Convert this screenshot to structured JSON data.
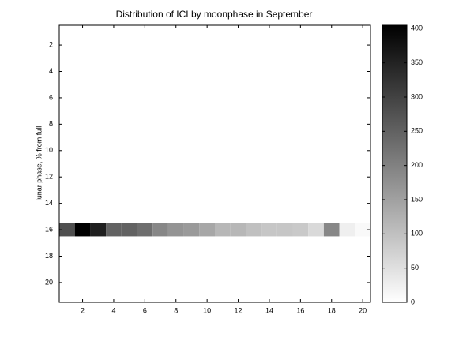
{
  "chart_data": {
    "type": "heatmap",
    "title": "Distribution of ICI by moonphase in September",
    "ylabel": "lunar phase, % from full",
    "x": [
      1,
      2,
      3,
      4,
      5,
      6,
      7,
      8,
      9,
      10,
      11,
      12,
      13,
      14,
      15,
      16,
      17,
      18,
      19,
      20
    ],
    "y": [
      16
    ],
    "values": [
      [
        280,
        405,
        355,
        250,
        250,
        230,
        190,
        170,
        160,
        140,
        115,
        115,
        100,
        90,
        90,
        85,
        60,
        190,
        25,
        10
      ]
    ],
    "xlim": [
      0.5,
      20.5
    ],
    "xticks": [
      2,
      4,
      6,
      8,
      10,
      12,
      14,
      16,
      18,
      20
    ],
    "ylim": [
      0.5,
      21.5
    ],
    "yticks": [
      2,
      4,
      6,
      8,
      10,
      12,
      14,
      16,
      18,
      20
    ],
    "y_reversed": true,
    "clim": [
      0,
      405
    ],
    "cticks": [
      0,
      50,
      100,
      150,
      200,
      250,
      300,
      350,
      400
    ],
    "colormap": [
      "#ffffff",
      "#000000"
    ]
  }
}
